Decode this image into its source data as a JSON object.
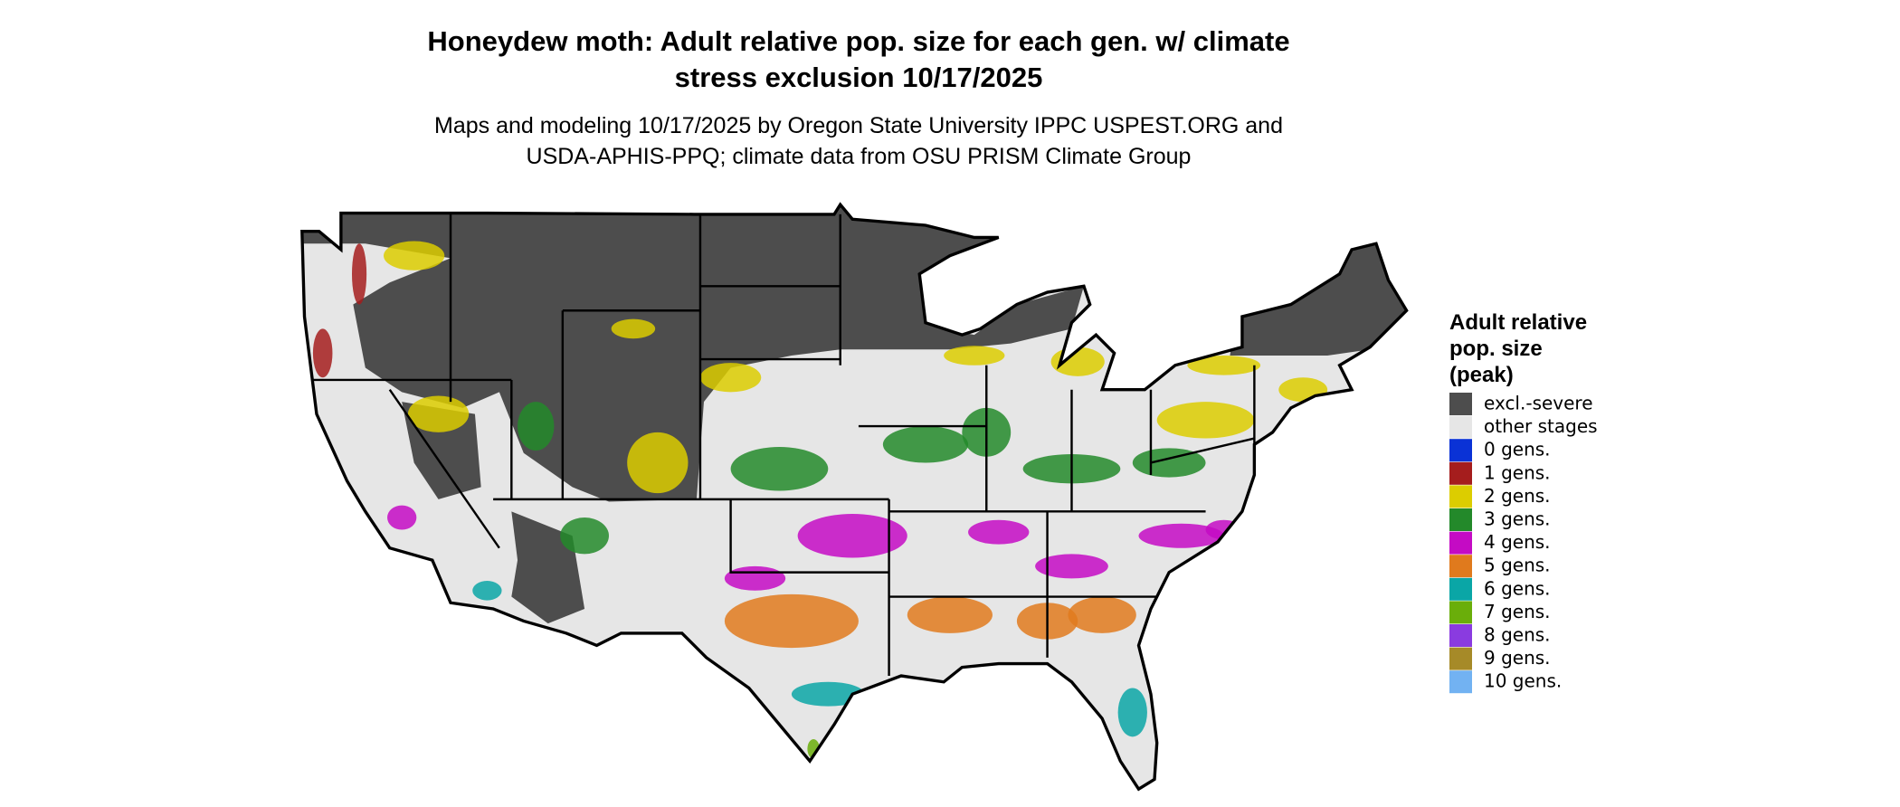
{
  "header": {
    "title": [
      "Honeydew moth: Adult relative pop. size for each gen. w/ climate",
      "stress exclusion 10/17/2025"
    ],
    "subtitle": [
      "Maps and modeling 10/17/2025 by Oregon State University IPPC USPEST.ORG and",
      "USDA-APHIS-PPQ; climate data from OSU PRISM Climate Group"
    ]
  },
  "legend": {
    "title": [
      "Adult relative",
      "pop. size",
      "(peak)"
    ],
    "items": [
      {
        "label": "excl.-severe",
        "color": "#4d4d4d"
      },
      {
        "label": "other stages",
        "color": "#e6e6e6"
      },
      {
        "label": "0 gens.",
        "color": "#0a32d6"
      },
      {
        "label": "1 gens.",
        "color": "#a51d1d"
      },
      {
        "label": "2 gens.",
        "color": "#dccd00"
      },
      {
        "label": "3 gens.",
        "color": "#23892a"
      },
      {
        "label": "4 gens.",
        "color": "#c40bc4"
      },
      {
        "label": "5 gens.",
        "color": "#e07a1d"
      },
      {
        "label": "6 gens.",
        "color": "#0aa6a6"
      },
      {
        "label": "7 gens.",
        "color": "#6aae0a"
      },
      {
        "label": "8 gens.",
        "color": "#8a3be0"
      },
      {
        "label": "9 gens.",
        "color": "#a68a28"
      },
      {
        "label": "10 gens.",
        "color": "#72b2f2"
      }
    ]
  }
}
